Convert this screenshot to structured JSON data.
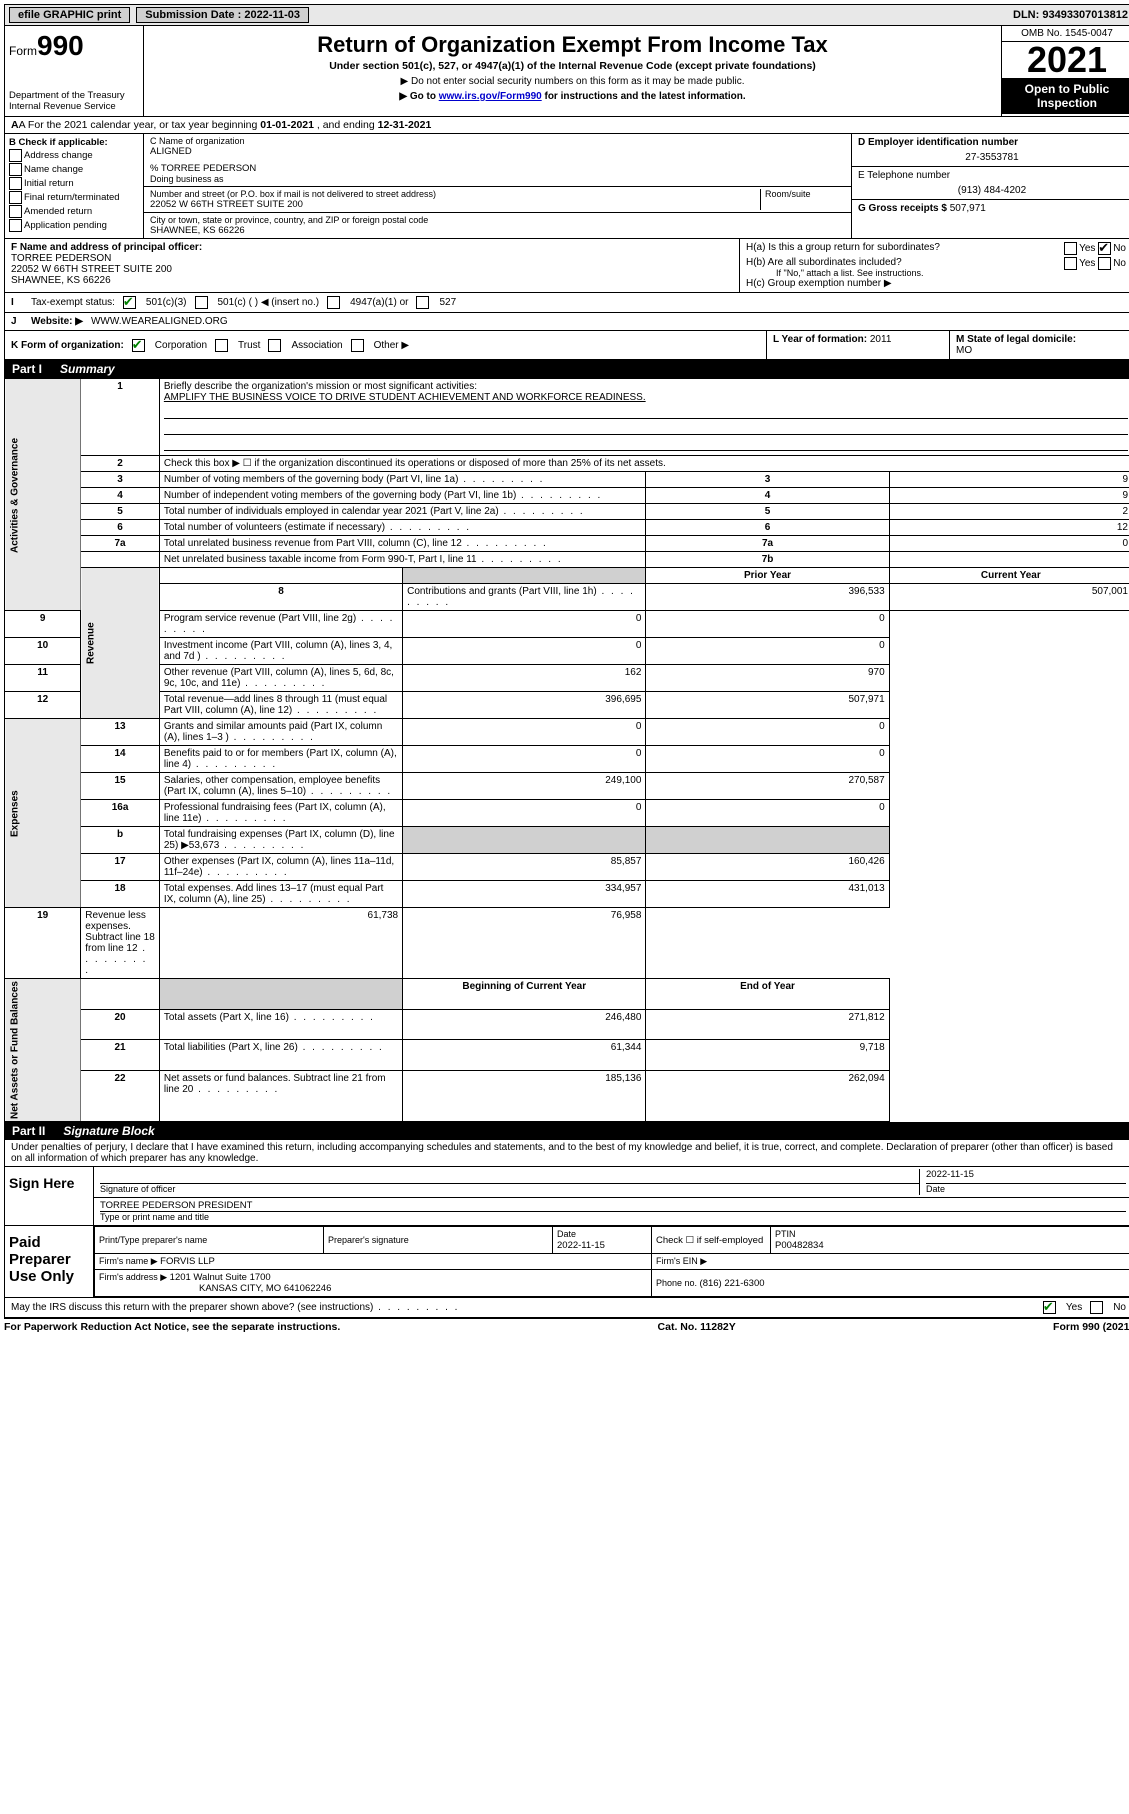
{
  "topbar": {
    "efile": "efile GRAPHIC print",
    "submission_label": "Submission Date : ",
    "submission_date": "2022-11-03",
    "dln_label": "DLN: ",
    "dln": "93493307013812"
  },
  "header": {
    "form_prefix": "Form",
    "form_no": "990",
    "dept": "Department of the Treasury\nInternal Revenue Service",
    "title": "Return of Organization Exempt From Income Tax",
    "subtitle": "Under section 501(c), 527, or 4947(a)(1) of the Internal Revenue Code (except private foundations)",
    "note1": "▶ Do not enter social security numbers on this form as it may be made public.",
    "note2_pre": "▶ Go to ",
    "note2_link": "www.irs.gov/Form990",
    "note2_post": " for instructions and the latest information.",
    "omb": "OMB No. 1545-0047",
    "tax_year": "2021",
    "open_inspect": "Open to Public Inspection"
  },
  "row_a": {
    "text_pre": "A For the 2021 calendar year, or tax year beginning ",
    "begin": "01-01-2021",
    "mid": " , and ending ",
    "end": "12-31-2021"
  },
  "section_b": {
    "header": "B Check if applicable:",
    "items": [
      "Address change",
      "Name change",
      "Initial return",
      "Final return/terminated",
      "Amended return",
      "Application pending"
    ]
  },
  "section_c": {
    "name_label": "C Name of organization",
    "name": "ALIGNED",
    "care_of": "% TORREE PEDERSON",
    "dba_label": "Doing business as",
    "street_label": "Number and street (or P.O. box if mail is not delivered to street address)",
    "room_label": "Room/suite",
    "street": "22052 W 66TH STREET SUITE 200",
    "city_label": "City or town, state or province, country, and ZIP or foreign postal code",
    "city": "SHAWNEE, KS  66226"
  },
  "section_d": {
    "ein_label": "D Employer identification number",
    "ein": "27-3553781",
    "phone_label": "E Telephone number",
    "phone": "(913) 484-4202",
    "gross_label": "G Gross receipts $ ",
    "gross": "507,971"
  },
  "section_f": {
    "label": "F Name and address of principal officer:",
    "name": "TORREE PEDERSON",
    "addr1": "22052 W 66TH STREET SUITE 200",
    "addr2": "SHAWNEE, KS  66226"
  },
  "section_h": {
    "ha": "H(a)  Is this a group return for subordinates?",
    "hb": "H(b)  Are all subordinates included?",
    "hb_note": "If \"No,\" attach a list. See instructions.",
    "hc": "H(c)  Group exemption number ▶",
    "yes": "Yes",
    "no": "No"
  },
  "row_i": {
    "label": "Tax-exempt status:",
    "opts": [
      "501(c)(3)",
      "501(c) (  ) ◀ (insert no.)",
      "4947(a)(1) or",
      "527"
    ]
  },
  "row_j": {
    "label": "Website: ▶ ",
    "value": "WWW.WEAREALIGNED.ORG"
  },
  "row_k": {
    "label": "K Form of organization:",
    "opts": [
      "Corporation",
      "Trust",
      "Association",
      "Other ▶"
    ]
  },
  "row_l": {
    "label": "L Year of formation: ",
    "value": "2011"
  },
  "row_m": {
    "label": "M State of legal domicile:",
    "value": "MO"
  },
  "part1": {
    "name": "Part I",
    "title": "Summary",
    "q1_label": "Briefly describe the organization's mission or most significant activities:",
    "q1_answer": "AMPLIFY THE BUSINESS VOICE TO DRIVE STUDENT ACHIEVEMENT AND WORKFORCE READINESS.",
    "q2": "Check this box ▶ ☐  if the organization discontinued its operations or disposed of more than 25% of its net assets.",
    "vlabels": {
      "gov": "Activities & Governance",
      "rev": "Revenue",
      "exp": "Expenses",
      "net": "Net Assets or Fund Balances"
    },
    "lines_gov": [
      {
        "n": "3",
        "desc": "Number of voting members of the governing body (Part VI, line 1a)",
        "box": "3",
        "val": "9"
      },
      {
        "n": "4",
        "desc": "Number of independent voting members of the governing body (Part VI, line 1b)",
        "box": "4",
        "val": "9"
      },
      {
        "n": "5",
        "desc": "Total number of individuals employed in calendar year 2021 (Part V, line 2a)",
        "box": "5",
        "val": "2"
      },
      {
        "n": "6",
        "desc": "Total number of volunteers (estimate if necessary)",
        "box": "6",
        "val": "12"
      },
      {
        "n": "7a",
        "desc": "Total unrelated business revenue from Part VIII, column (C), line 12",
        "box": "7a",
        "val": "0"
      },
      {
        "n": "",
        "desc": "Net unrelated business taxable income from Form 990-T, Part I, line 11",
        "box": "7b",
        "val": ""
      }
    ],
    "col_prior": "Prior Year",
    "col_current": "Current Year",
    "lines_rev": [
      {
        "n": "8",
        "desc": "Contributions and grants (Part VIII, line 1h)",
        "prior": "396,533",
        "cur": "507,001"
      },
      {
        "n": "9",
        "desc": "Program service revenue (Part VIII, line 2g)",
        "prior": "0",
        "cur": "0"
      },
      {
        "n": "10",
        "desc": "Investment income (Part VIII, column (A), lines 3, 4, and 7d )",
        "prior": "0",
        "cur": "0"
      },
      {
        "n": "11",
        "desc": "Other revenue (Part VIII, column (A), lines 5, 6d, 8c, 9c, 10c, and 11e)",
        "prior": "162",
        "cur": "970"
      },
      {
        "n": "12",
        "desc": "Total revenue—add lines 8 through 11 (must equal Part VIII, column (A), line 12)",
        "prior": "396,695",
        "cur": "507,971"
      }
    ],
    "lines_exp": [
      {
        "n": "13",
        "desc": "Grants and similar amounts paid (Part IX, column (A), lines 1–3 )",
        "prior": "0",
        "cur": "0"
      },
      {
        "n": "14",
        "desc": "Benefits paid to or for members (Part IX, column (A), line 4)",
        "prior": "0",
        "cur": "0"
      },
      {
        "n": "15",
        "desc": "Salaries, other compensation, employee benefits (Part IX, column (A), lines 5–10)",
        "prior": "249,100",
        "cur": "270,587"
      },
      {
        "n": "16a",
        "desc": "Professional fundraising fees (Part IX, column (A), line 11e)",
        "prior": "0",
        "cur": "0"
      },
      {
        "n": "b",
        "desc": "Total fundraising expenses (Part IX, column (D), line 25) ▶53,673",
        "prior": "",
        "cur": "",
        "grey": true
      },
      {
        "n": "17",
        "desc": "Other expenses (Part IX, column (A), lines 11a–11d, 11f–24e)",
        "prior": "85,857",
        "cur": "160,426"
      },
      {
        "n": "18",
        "desc": "Total expenses. Add lines 13–17 (must equal Part IX, column (A), line 25)",
        "prior": "334,957",
        "cur": "431,013"
      },
      {
        "n": "19",
        "desc": "Revenue less expenses. Subtract line 18 from line 12",
        "prior": "61,738",
        "cur": "76,958"
      }
    ],
    "col_begin": "Beginning of Current Year",
    "col_end": "End of Year",
    "lines_net": [
      {
        "n": "20",
        "desc": "Total assets (Part X, line 16)",
        "prior": "246,480",
        "cur": "271,812"
      },
      {
        "n": "21",
        "desc": "Total liabilities (Part X, line 26)",
        "prior": "61,344",
        "cur": "9,718"
      },
      {
        "n": "22",
        "desc": "Net assets or fund balances. Subtract line 21 from line 20",
        "prior": "185,136",
        "cur": "262,094"
      }
    ]
  },
  "part2": {
    "name": "Part II",
    "title": "Signature Block",
    "perjury": "Under penalties of perjury, I declare that I have examined this return, including accompanying schedules and statements, and to the best of my knowledge and belief, it is true, correct, and complete. Declaration of preparer (other than officer) is based on all information of which preparer has any knowledge.",
    "sign_here": "Sign Here",
    "sig_officer": "Signature of officer",
    "sig_date": "2022-11-15",
    "date_label": "Date",
    "officer_name": "TORREE PEDERSON  PRESIDENT",
    "type_name": "Type or print name and title",
    "paid": "Paid Preparer Use Only",
    "prep_name_label": "Print/Type preparer's name",
    "prep_sig_label": "Preparer's signature",
    "prep_date_label": "Date",
    "prep_date": "2022-11-15",
    "check_self": "Check ☐ if self-employed",
    "ptin_label": "PTIN",
    "ptin": "P00482834",
    "firm_name_label": "Firm's name    ▶ ",
    "firm_name": "FORVIS LLP",
    "firm_ein_label": "Firm's EIN ▶",
    "firm_addr_label": "Firm's address ▶ ",
    "firm_addr1": "1201 Walnut Suite 1700",
    "firm_addr2": "KANSAS CITY, MO  641062246",
    "firm_phone_label": "Phone no. ",
    "firm_phone": "(816) 221-6300",
    "discuss": "May the IRS discuss this return with the preparer shown above? (see instructions)"
  },
  "footer": {
    "left": "For Paperwork Reduction Act Notice, see the separate instructions.",
    "center": "Cat. No. 11282Y",
    "right": "Form 990 (2021)"
  }
}
